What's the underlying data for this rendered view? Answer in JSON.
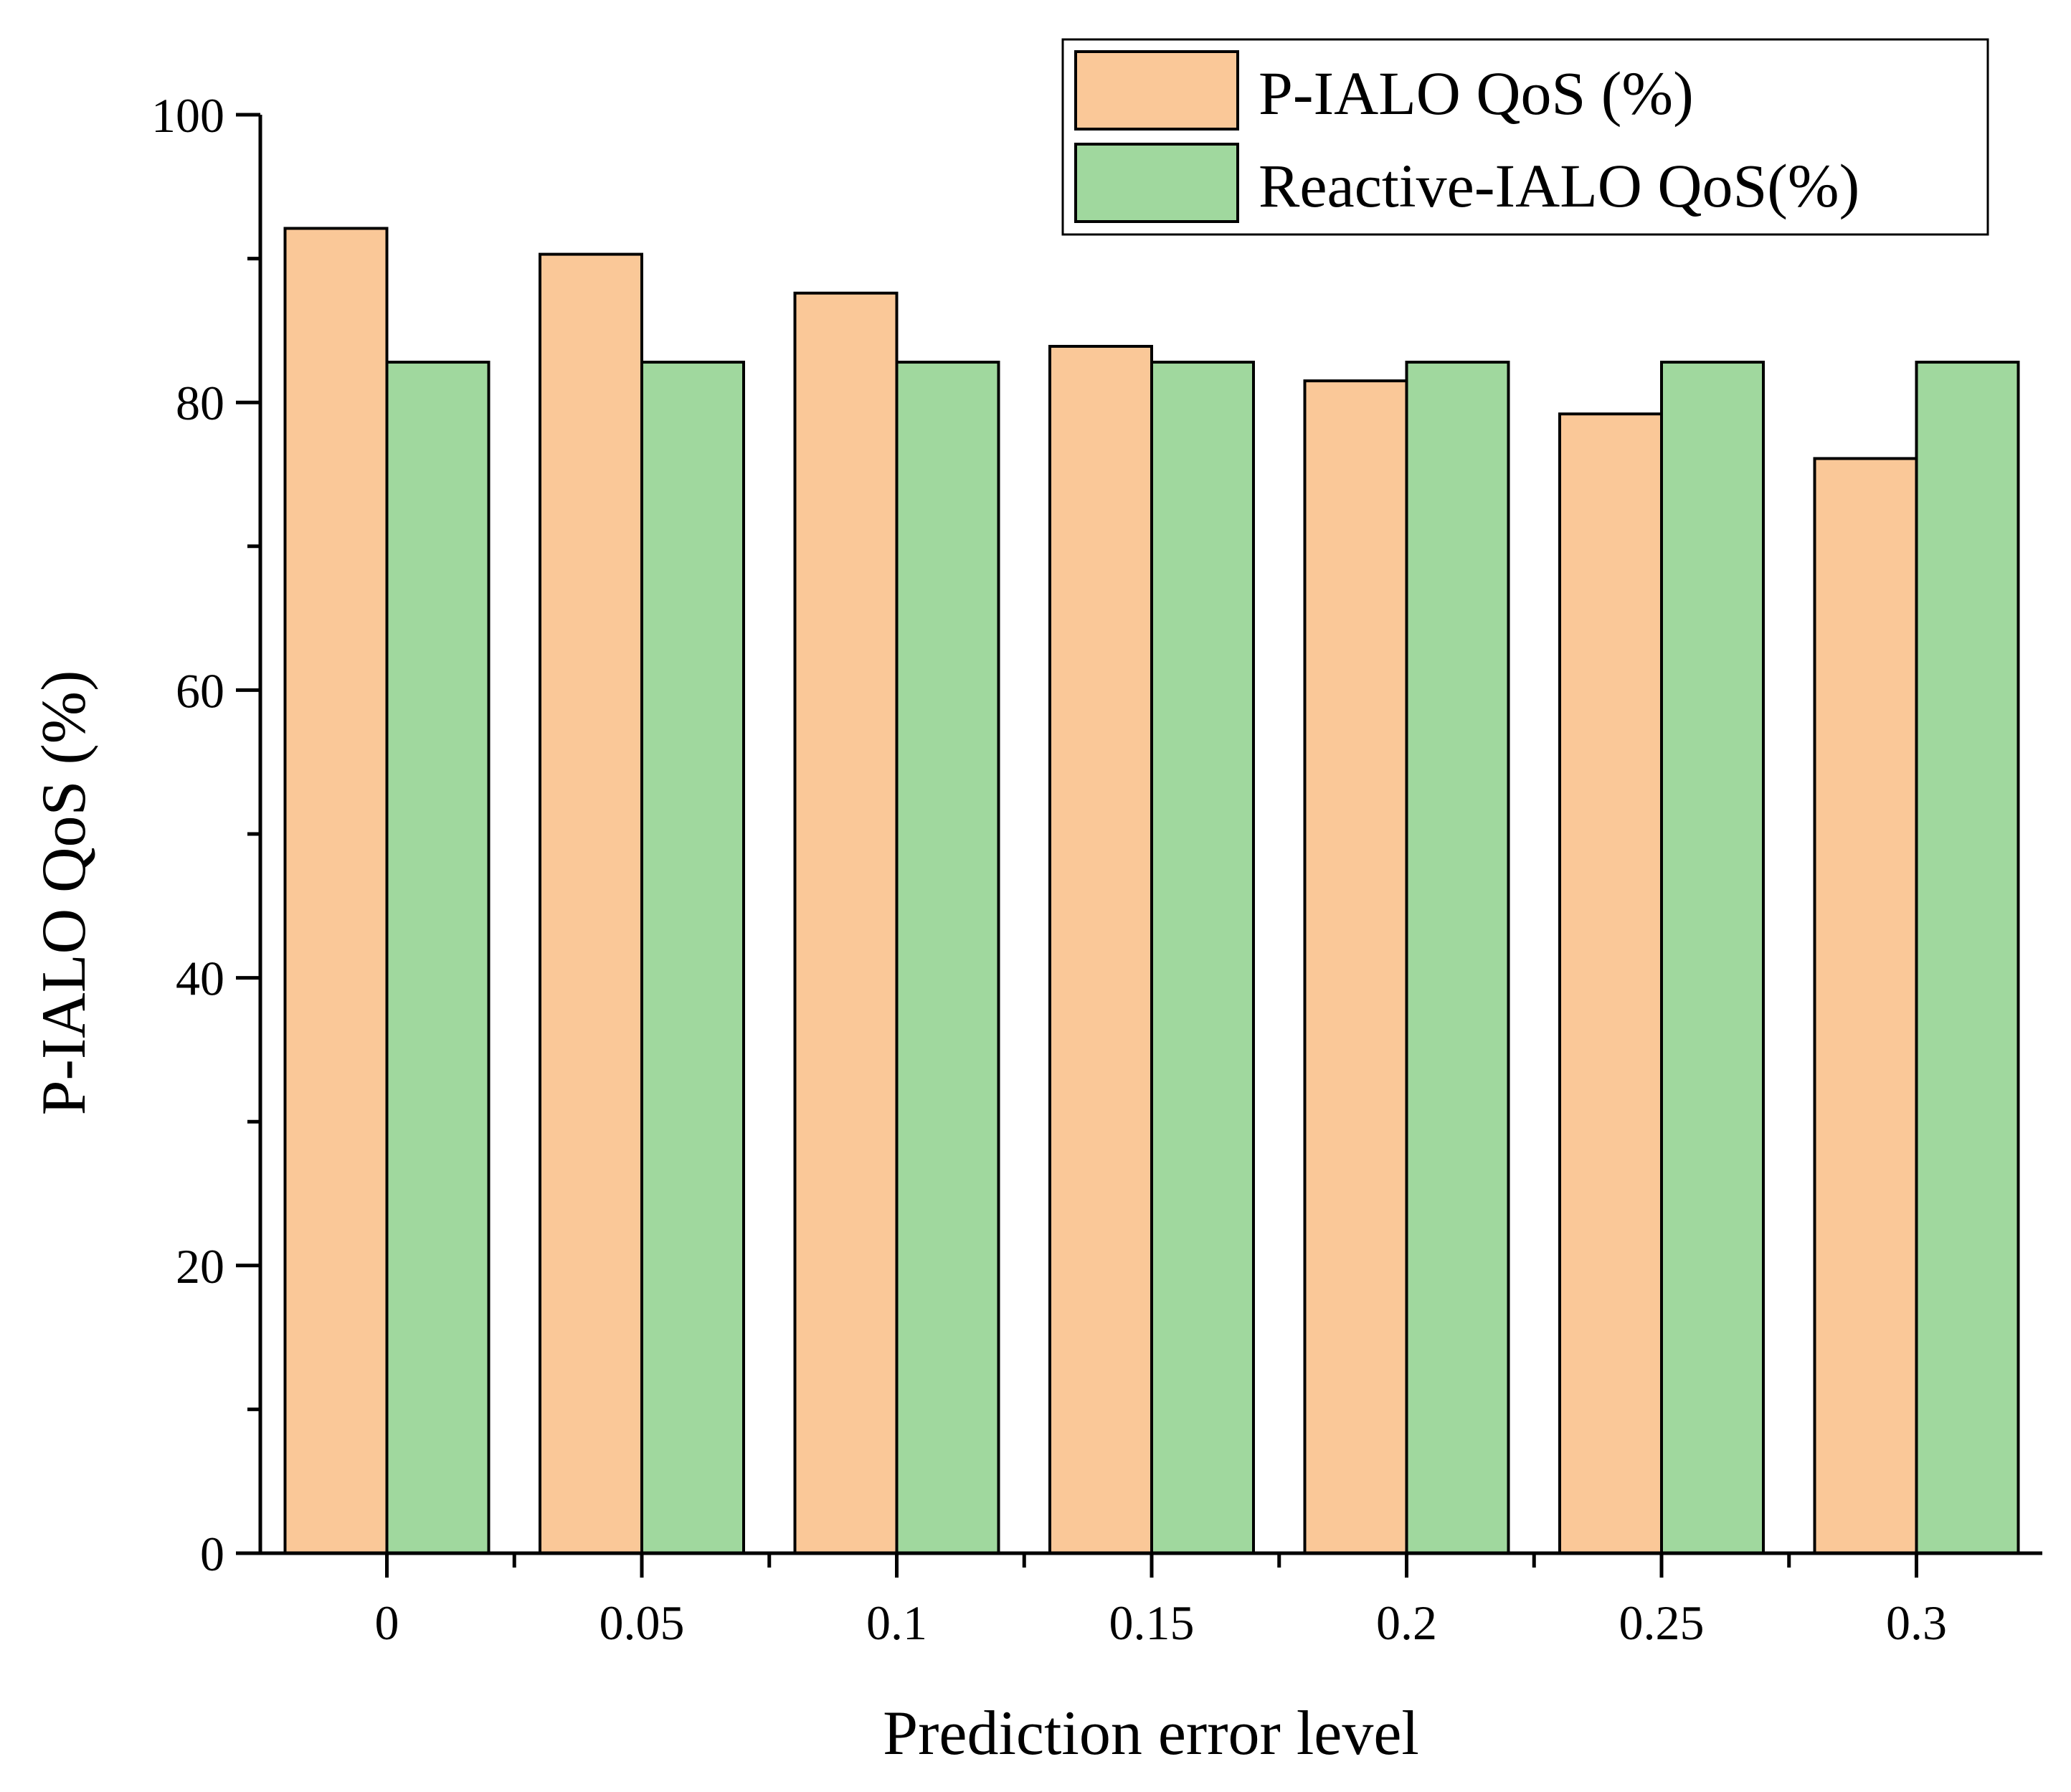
{
  "chart_data": {
    "type": "bar",
    "title": "",
    "xlabel": "Prediction error level",
    "ylabel": "P-IALO QoS (%)",
    "categories": [
      "0",
      "0.05",
      "0.1",
      "0.15",
      "0.2",
      "0.25",
      "0.3"
    ],
    "series": [
      {
        "name": "P-IALO QoS (%)",
        "color": "#FAC898",
        "values": [
          92.1,
          90.3,
          87.6,
          83.9,
          81.5,
          79.2,
          76.1
        ]
      },
      {
        "name": "Reactive-IALO QoS(%)",
        "color": "#A0D89E",
        "values": [
          82.8,
          82.8,
          82.8,
          82.8,
          82.8,
          82.8,
          82.8
        ]
      }
    ],
    "ylim": [
      0,
      100
    ],
    "yticks": [
      "0",
      "20",
      "40",
      "60",
      "80",
      "100"
    ],
    "ytick_values": [
      0,
      20,
      40,
      60,
      80,
      100
    ],
    "grid": false,
    "legend_position": "top-right",
    "colors": {
      "axis": "#000000",
      "bar_edge": "#000000",
      "background": "#FFFFFF"
    }
  }
}
